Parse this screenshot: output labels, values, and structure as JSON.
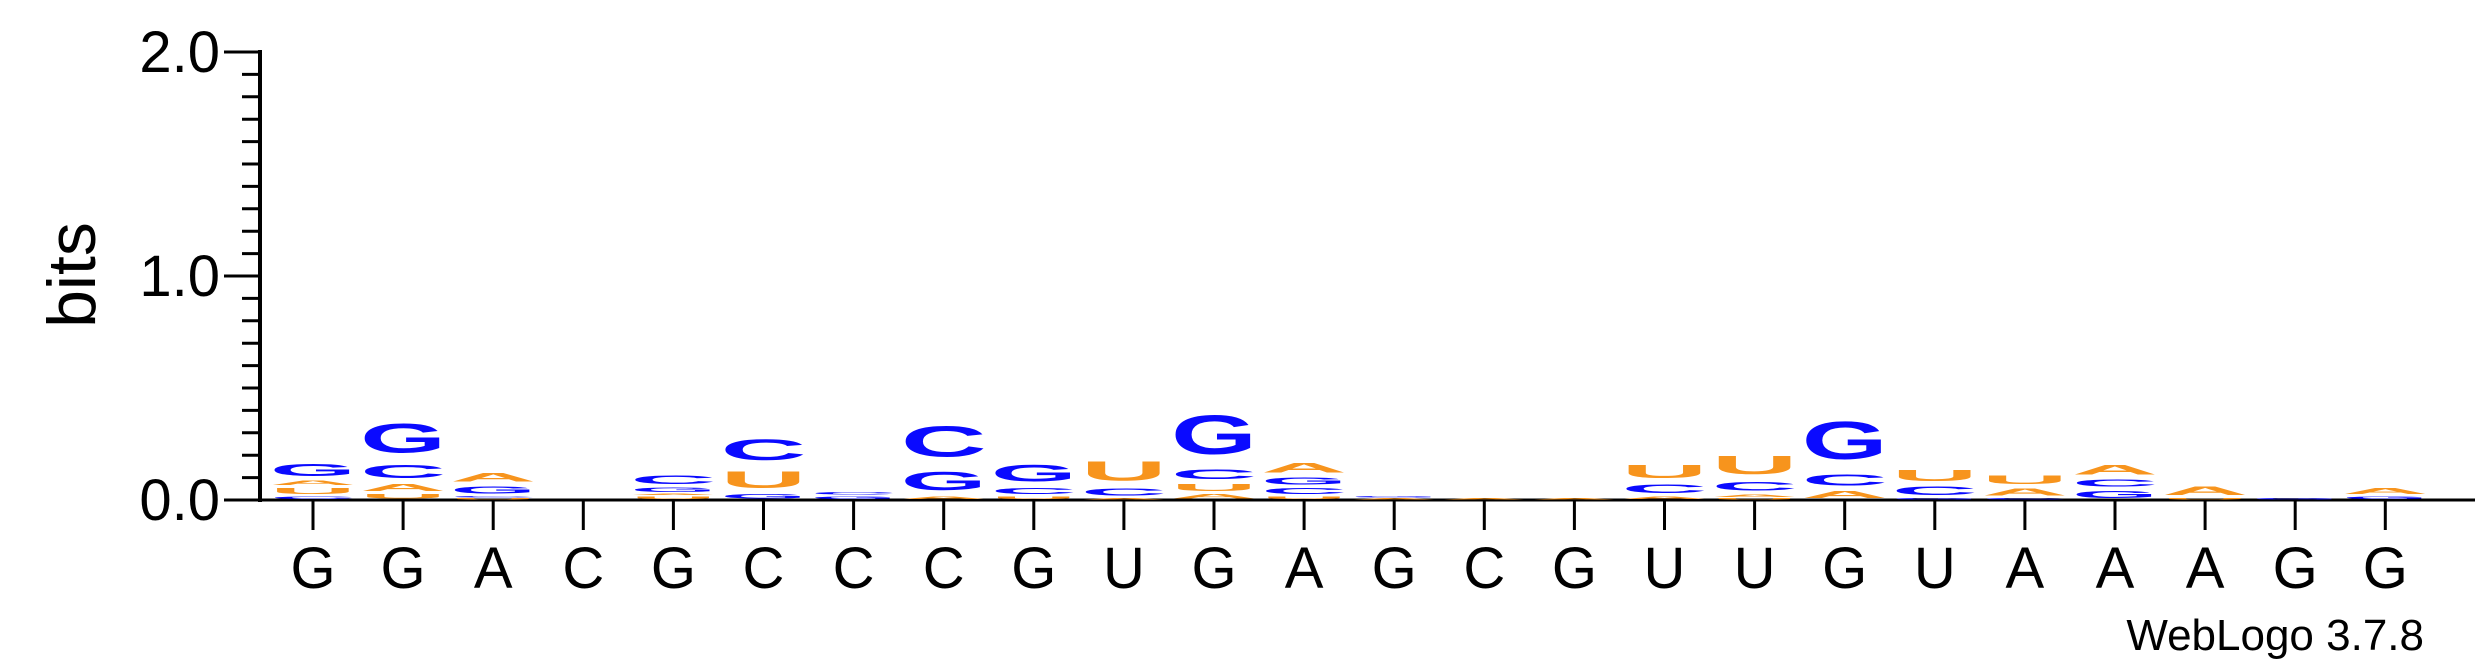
{
  "chart_data": {
    "type": "sequence-logo",
    "ylabel": "bits",
    "ylim": [
      0,
      2.0
    ],
    "yticks": [
      "0.0",
      "1.0",
      "2.0"
    ],
    "x_labels": [
      "G",
      "G",
      "A",
      "C",
      "G",
      "C",
      "C",
      "C",
      "G",
      "U",
      "G",
      "A",
      "G",
      "C",
      "G",
      "U",
      "U",
      "G",
      "U",
      "A",
      "A",
      "A",
      "G",
      "G"
    ],
    "credit": "WebLogo 3.7.8",
    "colors": {
      "A": "#f7941d",
      "U": "#f7941d",
      "C": "#0a0aff",
      "G": "#0a0aff"
    },
    "positions": [
      {
        "stack": [
          {
            "base": "C",
            "height": 0.02
          },
          {
            "base": "U",
            "height": 0.04
          },
          {
            "base": "A",
            "height": 0.03
          },
          {
            "base": "G",
            "height": 0.09
          }
        ]
      },
      {
        "stack": [
          {
            "base": "U",
            "height": 0.03
          },
          {
            "base": "A",
            "height": 0.05
          },
          {
            "base": "C",
            "height": 0.09
          },
          {
            "base": "G",
            "height": 0.21
          }
        ]
      },
      {
        "stack": [
          {
            "base": "U",
            "height": 0.01
          },
          {
            "base": "C",
            "height": 0.01
          },
          {
            "base": "G",
            "height": 0.05
          },
          {
            "base": "A",
            "height": 0.06
          }
        ]
      },
      {
        "stack": []
      },
      {
        "stack": [
          {
            "base": "U",
            "height": 0.02
          },
          {
            "base": "A",
            "height": 0.01
          },
          {
            "base": "G",
            "height": 0.03
          },
          {
            "base": "C",
            "height": 0.06
          }
        ]
      },
      {
        "stack": [
          {
            "base": "G",
            "height": 0.03
          },
          {
            "base": "U",
            "height": 0.12
          },
          {
            "base": "C",
            "height": 0.15
          }
        ]
      },
      {
        "stack": [
          {
            "base": "G",
            "height": 0.02
          },
          {
            "base": "C",
            "height": 0.02
          }
        ]
      },
      {
        "stack": [
          {
            "base": "A",
            "height": 0.02
          },
          {
            "base": "G",
            "height": 0.13
          },
          {
            "base": "C",
            "height": 0.22
          }
        ]
      },
      {
        "stack": [
          {
            "base": "U",
            "height": 0.02
          },
          {
            "base": "C",
            "height": 0.04
          },
          {
            "base": "G",
            "height": 0.12
          }
        ]
      },
      {
        "stack": [
          {
            "base": "A",
            "height": 0.01
          },
          {
            "base": "C",
            "height": 0.05
          },
          {
            "base": "U",
            "height": 0.14
          }
        ]
      },
      {
        "stack": [
          {
            "base": "A",
            "height": 0.03
          },
          {
            "base": "U",
            "height": 0.05
          },
          {
            "base": "C",
            "height": 0.07
          },
          {
            "base": "G",
            "height": 0.28
          }
        ]
      },
      {
        "stack": [
          {
            "base": "U",
            "height": 0.02
          },
          {
            "base": "C",
            "height": 0.04
          },
          {
            "base": "G",
            "height": 0.05
          },
          {
            "base": "A",
            "height": 0.07
          }
        ]
      },
      {
        "stack": [
          {
            "base": "A",
            "height": 0.01
          },
          {
            "base": "G",
            "height": 0.01
          }
        ]
      },
      {
        "stack": [
          {
            "base": "A",
            "height": 0.01
          }
        ]
      },
      {
        "stack": [
          {
            "base": "A",
            "height": 0.01
          }
        ]
      },
      {
        "stack": [
          {
            "base": "A",
            "height": 0.02
          },
          {
            "base": "C",
            "height": 0.06
          },
          {
            "base": "U",
            "height": 0.09
          }
        ]
      },
      {
        "stack": [
          {
            "base": "U",
            "height": 0.01
          },
          {
            "base": "A",
            "height": 0.02
          },
          {
            "base": "C",
            "height": 0.06
          },
          {
            "base": "U",
            "height": 0.13
          }
        ]
      },
      {
        "stack": [
          {
            "base": "A",
            "height": 0.05
          },
          {
            "base": "C",
            "height": 0.08
          },
          {
            "base": "G",
            "height": 0.27
          }
        ]
      },
      {
        "stack": [
          {
            "base": "G",
            "height": 0.01
          },
          {
            "base": "C",
            "height": 0.06
          },
          {
            "base": "U",
            "height": 0.08
          }
        ]
      },
      {
        "stack": [
          {
            "base": "C",
            "height": 0.01
          },
          {
            "base": "A",
            "height": 0.05
          },
          {
            "base": "U",
            "height": 0.06
          }
        ]
      },
      {
        "stack": [
          {
            "base": "G",
            "height": 0.05
          },
          {
            "base": "C",
            "height": 0.05
          },
          {
            "base": "A",
            "height": 0.07
          }
        ]
      },
      {
        "stack": [
          {
            "base": "U",
            "height": 0.01
          },
          {
            "base": "A",
            "height": 0.06
          }
        ]
      },
      {
        "stack": [
          {
            "base": "G",
            "height": 0.01
          }
        ]
      },
      {
        "stack": [
          {
            "base": "G",
            "height": 0.02
          },
          {
            "base": "A",
            "height": 0.04
          }
        ]
      }
    ]
  }
}
